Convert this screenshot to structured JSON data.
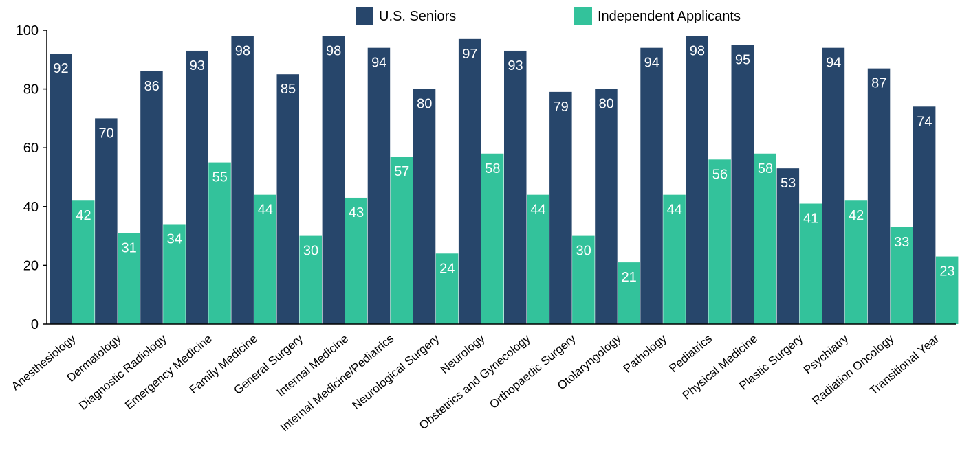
{
  "chart_data": {
    "type": "bar",
    "title": "",
    "xlabel": "",
    "ylabel": "",
    "ylim": [
      0,
      100
    ],
    "yticks": [
      0,
      20,
      40,
      60,
      80,
      100
    ],
    "grid": false,
    "legend_position": "top-center",
    "categories": [
      "Anesthesiology",
      "Dermatology",
      "Diagnostic Radiology",
      "Emergency Medicine",
      "Family Medicine",
      "General Surgery",
      "Internal Medicine",
      "Internal Medicine/Pediatrics",
      "Neurological Surgery",
      "Neurology",
      "Obstetrics and Gynecology",
      "Orthopaedic Surgery",
      "Otolaryngology",
      "Pathology",
      "Pediatrics",
      "Physical Medicine",
      "Plastic Surgery",
      "Psychiatry",
      "Radiation Oncology",
      "Transitional Year"
    ],
    "series": [
      {
        "name": "U.S. Seniors",
        "color": "#27466b",
        "values": [
          92,
          70,
          86,
          93,
          98,
          85,
          98,
          94,
          80,
          97,
          93,
          79,
          80,
          94,
          98,
          95,
          53,
          94,
          87,
          74
        ]
      },
      {
        "name": "Independent Applicants",
        "color": "#33c29b",
        "values": [
          42,
          31,
          34,
          55,
          44,
          30,
          43,
          57,
          24,
          58,
          44,
          30,
          21,
          44,
          56,
          58,
          41,
          42,
          33,
          23
        ]
      }
    ]
  }
}
